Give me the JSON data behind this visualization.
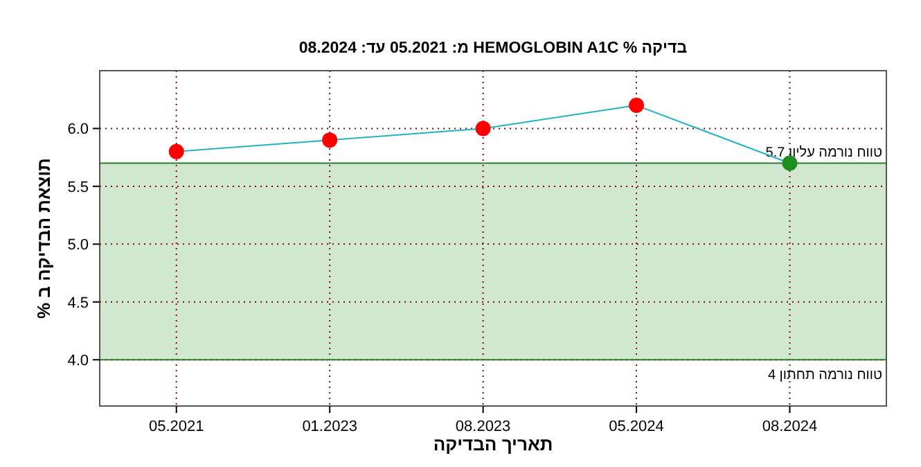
{
  "chart_data": {
    "type": "line",
    "title": "בדיקה % HEMOGLOBIN A1C מ: 05.2021 עד: 08.2024",
    "xlabel": "תאריך הבדיקה",
    "ylabel": "תוצאת הבדיקה ב %",
    "categories": [
      "05.2021",
      "01.2023",
      "08.2023",
      "05.2024",
      "08.2024"
    ],
    "series": [
      {
        "color": "#1fb2c9",
        "values": [
          5.8,
          5.9,
          6.0,
          6.2,
          5.7
        ],
        "colors": [
          "#ff0000",
          "#ff0000",
          "#ff0000",
          "#ff0000",
          "#1e8c1e"
        ]
      }
    ],
    "ylim": [
      3.6,
      6.5
    ],
    "yticks": [
      {
        "value": 4,
        "label": "4.0"
      },
      {
        "value": 4.5,
        "label": "4.5"
      },
      {
        "value": 5,
        "label": "5.0"
      },
      {
        "value": 5.5,
        "label": "5.5"
      },
      {
        "value": 6,
        "label": "6.0"
      }
    ],
    "bands": [
      {
        "axis": "y",
        "from": 4,
        "to": 5.7,
        "color": "#cfe8cf"
      }
    ],
    "ref_lines": [
      {
        "axis": "y",
        "value": 5.7,
        "label": "טווח נורמה עליון 5.7",
        "color": "#2e7d2e"
      },
      {
        "axis": "y",
        "value": 4,
        "label": "טווח נורמה תחתון 4",
        "color": "#2e7d2e"
      }
    ],
    "grid": true,
    "marker": "circle",
    "line_style": "solid"
  }
}
